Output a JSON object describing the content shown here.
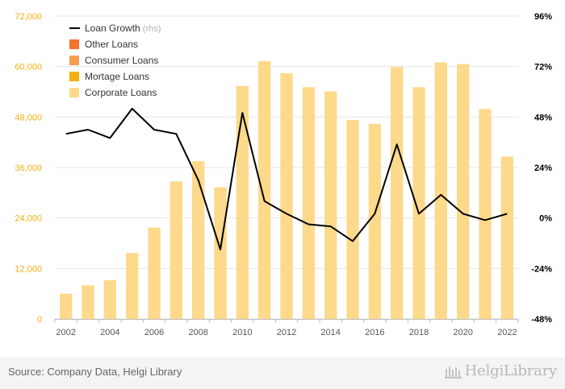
{
  "chart_data": {
    "type": "bar",
    "x": [
      2002,
      2003,
      2004,
      2005,
      2006,
      2007,
      2008,
      2009,
      2010,
      2011,
      2012,
      2013,
      2014,
      2015,
      2016,
      2017,
      2018,
      2019,
      2020,
      2021,
      2022
    ],
    "x_tick_labels": [
      "2002",
      "2004",
      "2006",
      "2008",
      "2010",
      "2012",
      "2014",
      "2016",
      "2018",
      "2020",
      "2022"
    ],
    "series": [
      {
        "name": "Other Loans",
        "kind": "bar",
        "color": "#f4722b",
        "values": [
          0,
          0,
          0,
          0,
          0,
          0,
          0,
          0,
          0,
          0,
          0,
          0,
          0,
          0,
          0,
          0,
          0,
          0,
          0,
          0,
          0
        ]
      },
      {
        "name": "Consumer Loans",
        "kind": "bar",
        "color": "#f79d4f",
        "values": [
          0,
          0,
          0,
          0,
          0,
          0,
          0,
          0,
          0,
          0,
          0,
          0,
          0,
          0,
          0,
          0,
          0,
          0,
          0,
          0,
          0
        ]
      },
      {
        "name": "Mortage Loans",
        "kind": "bar",
        "color": "#f3b012",
        "values": [
          0,
          0,
          0,
          0,
          0,
          0,
          0,
          0,
          0,
          0,
          0,
          0,
          0,
          0,
          0,
          0,
          0,
          0,
          0,
          0,
          0
        ]
      },
      {
        "name": "Corporate Loans",
        "kind": "bar",
        "color": "#fdd98b",
        "values": [
          6000,
          8000,
          9200,
          15700,
          21700,
          32700,
          37500,
          31300,
          55400,
          61300,
          58400,
          55100,
          54100,
          47300,
          46400,
          59900,
          55100,
          61000,
          60600,
          49900,
          38600
        ]
      },
      {
        "name": "Loan Growth",
        "name_suffix": "(rhs)",
        "kind": "line",
        "axis": "right",
        "color": "#000000",
        "values": [
          40,
          42,
          38,
          52,
          42,
          40,
          18,
          -15,
          50,
          8,
          2,
          -3,
          -4,
          -11,
          2,
          35,
          2,
          11,
          2,
          -1,
          2
        ]
      }
    ],
    "left_axis": {
      "min": 0,
      "max": 72000,
      "ticks": [
        0,
        12000,
        24000,
        36000,
        48000,
        60000,
        72000
      ],
      "tick_labels": [
        "0",
        "12,000",
        "24,000",
        "36,000",
        "48,000",
        "60,000",
        "72,000"
      ],
      "color": "#f3b012"
    },
    "right_axis": {
      "min": -48,
      "max": 96,
      "ticks": [
        -48,
        -24,
        0,
        24,
        48,
        72,
        96
      ],
      "tick_labels": [
        "-48%",
        "-24%",
        "0%",
        "24%",
        "48%",
        "72%",
        "96%"
      ],
      "color": "#000000"
    },
    "grid": true,
    "legend": "top-left"
  },
  "footer": {
    "source": "Source: Company Data, Helgi Library",
    "logo_text": "HelgiLibrary"
  }
}
